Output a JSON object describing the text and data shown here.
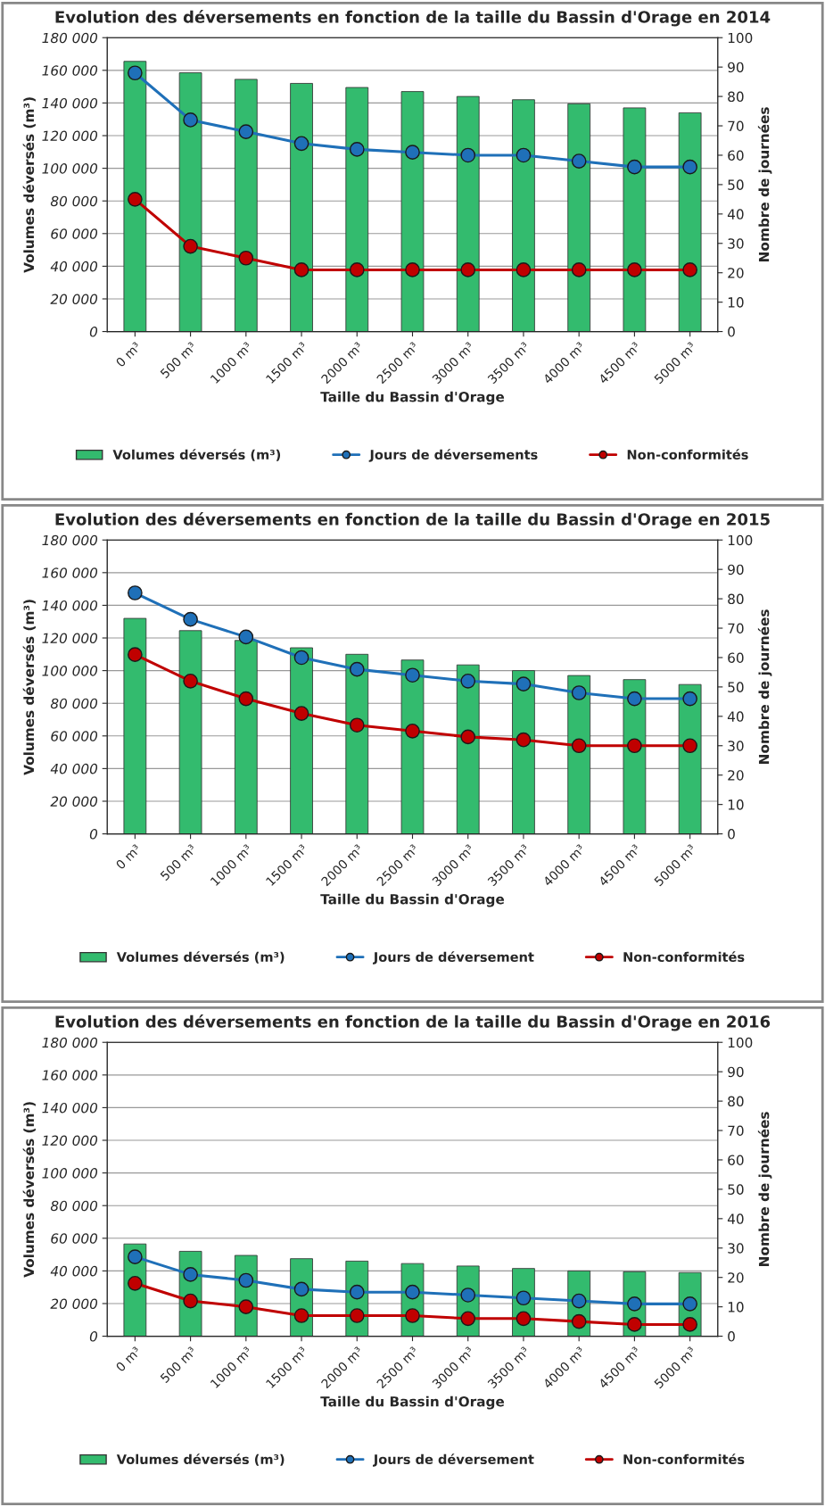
{
  "chart_data": [
    {
      "type": "bar",
      "title": "Evolution des déversements en fonction de la taille du Bassin d'Orage en 2014",
      "xlabel": "Taille du Bassin d'Orage",
      "ylabel": "Volumes déversés (m³)",
      "y2label": "Nombre de journées",
      "categories": [
        "0 m³",
        "500 m³",
        "1000 m³",
        "1500 m³",
        "2000 m³",
        "2500 m³",
        "3000 m³",
        "3500 m³",
        "4000 m³",
        "4500 m³",
        "5000 m³"
      ],
      "series": [
        {
          "name": "Volumes déversés (m³)",
          "color": "#33bb6e",
          "values": [
            165500,
            158500,
            154500,
            152000,
            149500,
            147000,
            144000,
            142000,
            139500,
            137000,
            134000
          ]
        },
        {
          "name": "Jours de déversements",
          "type": "line",
          "axis": "y2",
          "color": "#1f70b8",
          "values": [
            88,
            72,
            68,
            64,
            62,
            61,
            60,
            60,
            58,
            56,
            56
          ]
        },
        {
          "name": "Non-conformités",
          "type": "line",
          "axis": "y2",
          "color": "#c00000",
          "values": [
            45,
            29,
            25,
            21,
            21,
            21,
            21,
            21,
            21,
            21,
            21
          ]
        }
      ],
      "ylim": [
        0,
        180000
      ],
      "yticks": [
        {
          "value": 0,
          "label": "0"
        },
        {
          "value": 20000,
          "label": "20 000"
        },
        {
          "value": 40000,
          "label": "40 000"
        },
        {
          "value": 60000,
          "label": "60 000"
        },
        {
          "value": 80000,
          "label": "80 000"
        },
        {
          "value": 100000,
          "label": "100 000"
        },
        {
          "value": 120000,
          "label": "120 000"
        },
        {
          "value": 140000,
          "label": "140 000"
        },
        {
          "value": 160000,
          "label": "160 000"
        },
        {
          "value": 180000,
          "label": "180 000"
        }
      ],
      "y2lim": [
        0,
        100
      ],
      "y2ticks": [
        0,
        10,
        20,
        30,
        40,
        50,
        60,
        70,
        80,
        90,
        100
      ],
      "grid": "y",
      "legend": "bottom",
      "marker": "circle"
    },
    {
      "type": "bar",
      "title": "Evolution des déversements en fonction de la taille du Bassin d'Orage en 2015",
      "xlabel": "Taille du Bassin d'Orage",
      "ylabel": "Volumes déversés (m³)",
      "y2label": "Nombre de journées",
      "categories": [
        "0 m³",
        "500 m³",
        "1000 m³",
        "1500 m³",
        "2000 m³",
        "2500 m³",
        "3000 m³",
        "3500 m³",
        "4000 m³",
        "4500 m³",
        "5000 m³"
      ],
      "series": [
        {
          "name": "Volumes déversés (m³)",
          "color": "#33bb6e",
          "values": [
            132000,
            124500,
            118500,
            114000,
            110000,
            106500,
            103500,
            100000,
            97000,
            94500,
            91500
          ]
        },
        {
          "name": "Jours de déversement",
          "type": "line",
          "axis": "y2",
          "color": "#1f70b8",
          "values": [
            82,
            73,
            67,
            60,
            56,
            54,
            52,
            51,
            48,
            46,
            46
          ]
        },
        {
          "name": "Non-conformités",
          "type": "line",
          "axis": "y2",
          "color": "#c00000",
          "values": [
            61,
            52,
            46,
            41,
            37,
            35,
            33,
            32,
            30,
            30,
            30
          ]
        }
      ],
      "ylim": [
        0,
        180000
      ],
      "yticks": [
        {
          "value": 0,
          "label": "0"
        },
        {
          "value": 20000,
          "label": "20 000"
        },
        {
          "value": 40000,
          "label": "40 000"
        },
        {
          "value": 60000,
          "label": "60 000"
        },
        {
          "value": 80000,
          "label": "80 000"
        },
        {
          "value": 100000,
          "label": "100 000"
        },
        {
          "value": 120000,
          "label": "120 000"
        },
        {
          "value": 140000,
          "label": "140 000"
        },
        {
          "value": 160000,
          "label": "160 000"
        },
        {
          "value": 180000,
          "label": "180 000"
        }
      ],
      "y2lim": [
        0,
        100
      ],
      "y2ticks": [
        0,
        10,
        20,
        30,
        40,
        50,
        60,
        70,
        80,
        90,
        100
      ],
      "grid": "y",
      "legend": "bottom",
      "marker": "circle"
    },
    {
      "type": "bar",
      "title": "Evolution des déversements en fonction de la taille du Bassin d'Orage en 2016",
      "xlabel": "Taille du Bassin d'Orage",
      "ylabel": "Volumes déversés (m³)",
      "y2label": "Nombre de journées",
      "categories": [
        "0 m³",
        "500 m³",
        "1000 m³",
        "1500 m³",
        "2000 m³",
        "2500 m³",
        "3000 m³",
        "3500 m³",
        "4000 m³",
        "4500 m³",
        "5000 m³"
      ],
      "series": [
        {
          "name": "Volumes déversés (m³)",
          "color": "#33bb6e",
          "values": [
            56500,
            52000,
            49500,
            47500,
            46000,
            44500,
            43000,
            41500,
            40000,
            39500,
            39000
          ]
        },
        {
          "name": "Jours de déversement",
          "type": "line",
          "axis": "y2",
          "color": "#1f70b8",
          "values": [
            27,
            21,
            19,
            16,
            15,
            15,
            14,
            13,
            12,
            11,
            11
          ]
        },
        {
          "name": "Non-conformités",
          "type": "line",
          "axis": "y2",
          "color": "#c00000",
          "values": [
            18,
            12,
            10,
            7,
            7,
            7,
            6,
            6,
            5,
            4,
            4
          ]
        }
      ],
      "ylim": [
        0,
        180000
      ],
      "yticks": [
        {
          "value": 0,
          "label": "0"
        },
        {
          "value": 20000,
          "label": "20 000"
        },
        {
          "value": 40000,
          "label": "40 000"
        },
        {
          "value": 60000,
          "label": "60 000"
        },
        {
          "value": 80000,
          "label": "80 000"
        },
        {
          "value": 100000,
          "label": "100 000"
        },
        {
          "value": 120000,
          "label": "120 000"
        },
        {
          "value": 140000,
          "label": "140 000"
        },
        {
          "value": 160000,
          "label": "160 000"
        },
        {
          "value": 180000,
          "label": "180 000"
        }
      ],
      "y2lim": [
        0,
        100
      ],
      "y2ticks": [
        0,
        10,
        20,
        30,
        40,
        50,
        60,
        70,
        80,
        90,
        100
      ],
      "grid": "y",
      "legend": "bottom",
      "marker": "circle"
    }
  ]
}
